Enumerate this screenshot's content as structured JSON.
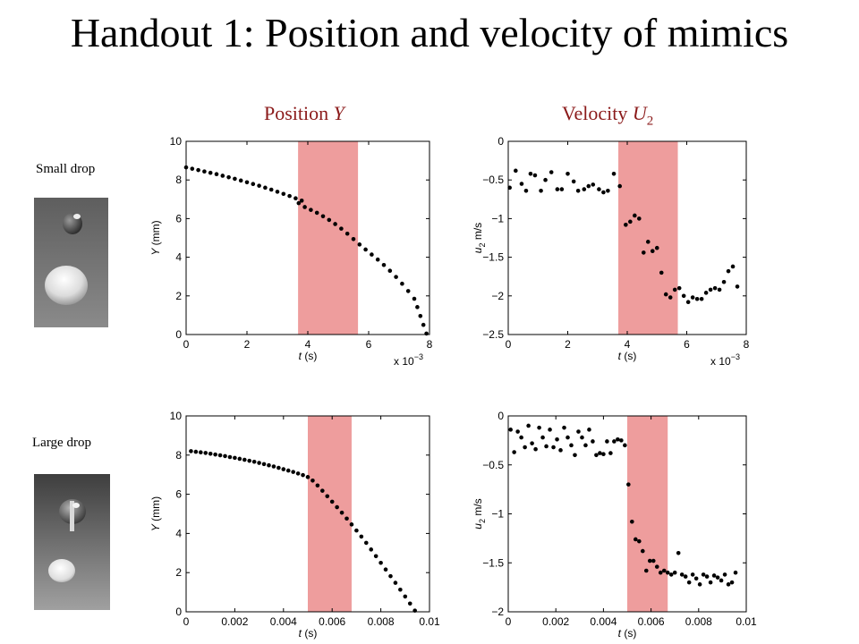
{
  "slide": {
    "title": "Handout 1: Position and velocity of mimics",
    "col_position_prefix": "Position ",
    "col_position_var": "Y",
    "col_velocity_prefix": "Velocity ",
    "col_velocity_var": "U",
    "col_velocity_sub": "2",
    "row_small": "Small drop",
    "row_large": "Large drop",
    "highlight_color": "#ee9d9d",
    "marker_color": "#000000",
    "title_color": "#000000",
    "header_color": "#8b1a1a"
  },
  "chart_data": [
    {
      "id": "small-position",
      "type": "scatter",
      "xlabel_var": "t",
      "xlabel_unit": " (s)",
      "ylabel_var": "Y",
      "ylabel_unit": " (mm)",
      "xlim": [
        0,
        0.008
      ],
      "ylim": [
        0,
        10
      ],
      "xticks": [
        0,
        0.002,
        0.004,
        0.006,
        0.008
      ],
      "xtick_labels": [
        "0",
        "2",
        "4",
        "6",
        "8"
      ],
      "yticks": [
        0,
        2,
        4,
        6,
        8,
        10
      ],
      "ytick_labels": [
        "0",
        "2",
        "4",
        "6",
        "8",
        "10"
      ],
      "x_multiplier_base": "x 10",
      "x_multiplier_exp": "−3",
      "shaded_region": [
        0.00368,
        0.00565
      ],
      "points": [
        [
          0.0,
          8.65
        ],
        [
          0.0002,
          8.58
        ],
        [
          0.0004,
          8.51
        ],
        [
          0.0006,
          8.44
        ],
        [
          0.0008,
          8.37
        ],
        [
          0.001,
          8.3
        ],
        [
          0.0012,
          8.22
        ],
        [
          0.0014,
          8.14
        ],
        [
          0.0016,
          8.06
        ],
        [
          0.0018,
          7.97
        ],
        [
          0.002,
          7.88
        ],
        [
          0.0022,
          7.79
        ],
        [
          0.0024,
          7.7
        ],
        [
          0.0026,
          7.6
        ],
        [
          0.0028,
          7.5
        ],
        [
          0.003,
          7.39
        ],
        [
          0.0032,
          7.28
        ],
        [
          0.0034,
          7.17
        ],
        [
          0.0036,
          7.05
        ],
        [
          0.0038,
          6.93
        ],
        [
          0.0037,
          6.8
        ],
        [
          0.0039,
          6.6
        ],
        [
          0.0041,
          6.45
        ],
        [
          0.0043,
          6.3
        ],
        [
          0.0045,
          6.12
        ],
        [
          0.0047,
          5.93
        ],
        [
          0.0049,
          5.72
        ],
        [
          0.0051,
          5.48
        ],
        [
          0.0053,
          5.22
        ],
        [
          0.0055,
          4.94
        ],
        [
          0.0057,
          4.66
        ],
        [
          0.0059,
          4.4
        ],
        [
          0.0061,
          4.14
        ],
        [
          0.0063,
          3.88
        ],
        [
          0.0065,
          3.6
        ],
        [
          0.0067,
          3.3
        ],
        [
          0.0069,
          2.98
        ],
        [
          0.0071,
          2.63
        ],
        [
          0.0073,
          2.25
        ],
        [
          0.0075,
          1.85
        ],
        [
          0.0076,
          1.42
        ],
        [
          0.0077,
          0.96
        ],
        [
          0.0078,
          0.5
        ],
        [
          0.0079,
          0.05
        ]
      ]
    },
    {
      "id": "small-velocity",
      "type": "scatter",
      "xlabel_var": "t",
      "xlabel_unit": " (s)",
      "ylabel_var": "u",
      "ylabel_sub": "2",
      "ylabel_unit": " m/s",
      "xlim": [
        0,
        0.008
      ],
      "ylim": [
        -2.5,
        0
      ],
      "xticks": [
        0,
        0.002,
        0.004,
        0.006,
        0.008
      ],
      "xtick_labels": [
        "0",
        "2",
        "4",
        "6",
        "8"
      ],
      "yticks": [
        -2.5,
        -2,
        -1.5,
        -1,
        -0.5,
        0
      ],
      "ytick_labels": [
        "−2.5",
        "−2",
        "−1.5",
        "−1",
        "−0.5",
        "0"
      ],
      "x_multiplier_base": "x 10",
      "x_multiplier_exp": "−3",
      "shaded_region": [
        0.0037,
        0.0057
      ],
      "points": [
        [
          5e-05,
          -0.6
        ],
        [
          0.00025,
          -0.38
        ],
        [
          0.00045,
          -0.55
        ],
        [
          0.0006,
          -0.64
        ],
        [
          0.00075,
          -0.42
        ],
        [
          0.0009,
          -0.44
        ],
        [
          0.0011,
          -0.64
        ],
        [
          0.00125,
          -0.5
        ],
        [
          0.00145,
          -0.4
        ],
        [
          0.00165,
          -0.62
        ],
        [
          0.0018,
          -0.62
        ],
        [
          0.002,
          -0.42
        ],
        [
          0.0022,
          -0.52
        ],
        [
          0.00235,
          -0.64
        ],
        [
          0.00255,
          -0.62
        ],
        [
          0.0027,
          -0.58
        ],
        [
          0.00285,
          -0.56
        ],
        [
          0.00305,
          -0.62
        ],
        [
          0.0032,
          -0.66
        ],
        [
          0.00335,
          -0.64
        ],
        [
          0.00355,
          -0.42
        ],
        [
          0.00375,
          -0.58
        ],
        [
          0.00395,
          -1.08
        ],
        [
          0.0041,
          -1.04
        ],
        [
          0.00425,
          -0.96
        ],
        [
          0.0044,
          -1.0
        ],
        [
          0.00455,
          -1.44
        ],
        [
          0.0047,
          -1.3
        ],
        [
          0.00485,
          -1.42
        ],
        [
          0.005,
          -1.38
        ],
        [
          0.00515,
          -1.7
        ],
        [
          0.0053,
          -1.98
        ],
        [
          0.00545,
          -2.02
        ],
        [
          0.0056,
          -1.92
        ],
        [
          0.00575,
          -1.9
        ],
        [
          0.0059,
          -2.0
        ],
        [
          0.00605,
          -2.08
        ],
        [
          0.0062,
          -2.02
        ],
        [
          0.00635,
          -2.04
        ],
        [
          0.0065,
          -2.04
        ],
        [
          0.00665,
          -1.96
        ],
        [
          0.0068,
          -1.92
        ],
        [
          0.00695,
          -1.9
        ],
        [
          0.0071,
          -1.92
        ],
        [
          0.00725,
          -1.82
        ],
        [
          0.0074,
          -1.68
        ],
        [
          0.00755,
          -1.62
        ],
        [
          0.0077,
          -1.88
        ]
      ]
    },
    {
      "id": "large-position",
      "type": "scatter",
      "xlabel_var": "t",
      "xlabel_unit": " (s)",
      "ylabel_var": "Y",
      "ylabel_unit": " (mm)",
      "xlim": [
        0,
        0.01
      ],
      "ylim": [
        0,
        10
      ],
      "xticks": [
        0,
        0.002,
        0.004,
        0.006,
        0.008,
        0.01
      ],
      "xtick_labels": [
        "0",
        "0.002",
        "0.004",
        "0.006",
        "0.008",
        "0.01"
      ],
      "yticks": [
        0,
        2,
        4,
        6,
        8,
        10
      ],
      "ytick_labels": [
        "0",
        "2",
        "4",
        "6",
        "8",
        "10"
      ],
      "shaded_region": [
        0.005,
        0.0068
      ],
      "points": [
        [
          0.0002,
          8.2
        ],
        [
          0.0004,
          8.17
        ],
        [
          0.0006,
          8.14
        ],
        [
          0.0008,
          8.11
        ],
        [
          0.001,
          8.07
        ],
        [
          0.0012,
          8.03
        ],
        [
          0.0014,
          7.99
        ],
        [
          0.0016,
          7.95
        ],
        [
          0.0018,
          7.9
        ],
        [
          0.002,
          7.86
        ],
        [
          0.0022,
          7.81
        ],
        [
          0.0024,
          7.76
        ],
        [
          0.0026,
          7.71
        ],
        [
          0.0028,
          7.66
        ],
        [
          0.003,
          7.6
        ],
        [
          0.0032,
          7.54
        ],
        [
          0.0034,
          7.48
        ],
        [
          0.0036,
          7.42
        ],
        [
          0.0038,
          7.35
        ],
        [
          0.004,
          7.28
        ],
        [
          0.0042,
          7.21
        ],
        [
          0.0044,
          7.14
        ],
        [
          0.0046,
          7.06
        ],
        [
          0.0048,
          6.98
        ],
        [
          0.005,
          6.88
        ],
        [
          0.0052,
          6.7
        ],
        [
          0.0054,
          6.45
        ],
        [
          0.0056,
          6.18
        ],
        [
          0.0058,
          5.9
        ],
        [
          0.006,
          5.62
        ],
        [
          0.0062,
          5.34
        ],
        [
          0.0064,
          5.06
        ],
        [
          0.0066,
          4.76
        ],
        [
          0.0068,
          4.46
        ],
        [
          0.007,
          4.15
        ],
        [
          0.0072,
          3.84
        ],
        [
          0.0074,
          3.52
        ],
        [
          0.0076,
          3.18
        ],
        [
          0.0078,
          2.84
        ],
        [
          0.008,
          2.5
        ],
        [
          0.0082,
          2.16
        ],
        [
          0.0084,
          1.82
        ],
        [
          0.0086,
          1.48
        ],
        [
          0.0088,
          1.13
        ],
        [
          0.009,
          0.78
        ],
        [
          0.0092,
          0.42
        ],
        [
          0.0094,
          0.06
        ]
      ]
    },
    {
      "id": "large-velocity",
      "type": "scatter",
      "xlabel_var": "t",
      "xlabel_unit": " (s)",
      "ylabel_var": "u",
      "ylabel_sub": "2",
      "ylabel_unit": " m/s",
      "xlim": [
        0,
        0.01
      ],
      "ylim": [
        -2,
        0
      ],
      "xticks": [
        0,
        0.002,
        0.004,
        0.006,
        0.008,
        0.01
      ],
      "xtick_labels": [
        "0",
        "0.002",
        "0.004",
        "0.006",
        "0.008",
        "0.01"
      ],
      "yticks": [
        -2,
        -1.5,
        -1,
        -0.5,
        0
      ],
      "ytick_labels": [
        "−2",
        "−1.5",
        "−1",
        "−0.5",
        "0"
      ],
      "shaded_region": [
        0.005,
        0.0067
      ],
      "points": [
        [
          0.0001,
          -0.14
        ],
        [
          0.00025,
          -0.37
        ],
        [
          0.0004,
          -0.16
        ],
        [
          0.00055,
          -0.22
        ],
        [
          0.0007,
          -0.32
        ],
        [
          0.00085,
          -0.1
        ],
        [
          0.001,
          -0.28
        ],
        [
          0.00115,
          -0.34
        ],
        [
          0.0013,
          -0.12
        ],
        [
          0.00145,
          -0.22
        ],
        [
          0.0016,
          -0.31
        ],
        [
          0.00175,
          -0.14
        ],
        [
          0.0019,
          -0.32
        ],
        [
          0.00205,
          -0.24
        ],
        [
          0.0022,
          -0.35
        ],
        [
          0.00235,
          -0.12
        ],
        [
          0.0025,
          -0.22
        ],
        [
          0.00265,
          -0.3
        ],
        [
          0.0028,
          -0.4
        ],
        [
          0.00295,
          -0.16
        ],
        [
          0.0031,
          -0.22
        ],
        [
          0.00325,
          -0.3
        ],
        [
          0.0034,
          -0.14
        ],
        [
          0.00355,
          -0.26
        ],
        [
          0.0037,
          -0.4
        ],
        [
          0.00385,
          -0.38
        ],
        [
          0.004,
          -0.39
        ],
        [
          0.00415,
          -0.26
        ],
        [
          0.0043,
          -0.38
        ],
        [
          0.00445,
          -0.26
        ],
        [
          0.0046,
          -0.24
        ],
        [
          0.00475,
          -0.25
        ],
        [
          0.0049,
          -0.3
        ],
        [
          0.00505,
          -0.7
        ],
        [
          0.0052,
          -1.08
        ],
        [
          0.00535,
          -1.26
        ],
        [
          0.0055,
          -1.28
        ],
        [
          0.00565,
          -1.38
        ],
        [
          0.0058,
          -1.58
        ],
        [
          0.00595,
          -1.48
        ],
        [
          0.0061,
          -1.48
        ],
        [
          0.00625,
          -1.54
        ],
        [
          0.0064,
          -1.6
        ],
        [
          0.00655,
          -1.58
        ],
        [
          0.0067,
          -1.6
        ],
        [
          0.00685,
          -1.62
        ],
        [
          0.007,
          -1.6
        ],
        [
          0.00715,
          -1.4
        ],
        [
          0.0073,
          -1.62
        ],
        [
          0.00745,
          -1.64
        ],
        [
          0.0076,
          -1.7
        ],
        [
          0.00775,
          -1.62
        ],
        [
          0.0079,
          -1.66
        ],
        [
          0.00805,
          -1.72
        ],
        [
          0.0082,
          -1.62
        ],
        [
          0.00835,
          -1.64
        ],
        [
          0.0085,
          -1.7
        ],
        [
          0.00865,
          -1.63
        ],
        [
          0.0088,
          -1.65
        ],
        [
          0.00895,
          -1.68
        ],
        [
          0.0091,
          -1.62
        ],
        [
          0.00925,
          -1.72
        ],
        [
          0.0094,
          -1.7
        ],
        [
          0.00955,
          -1.6
        ]
      ]
    }
  ]
}
